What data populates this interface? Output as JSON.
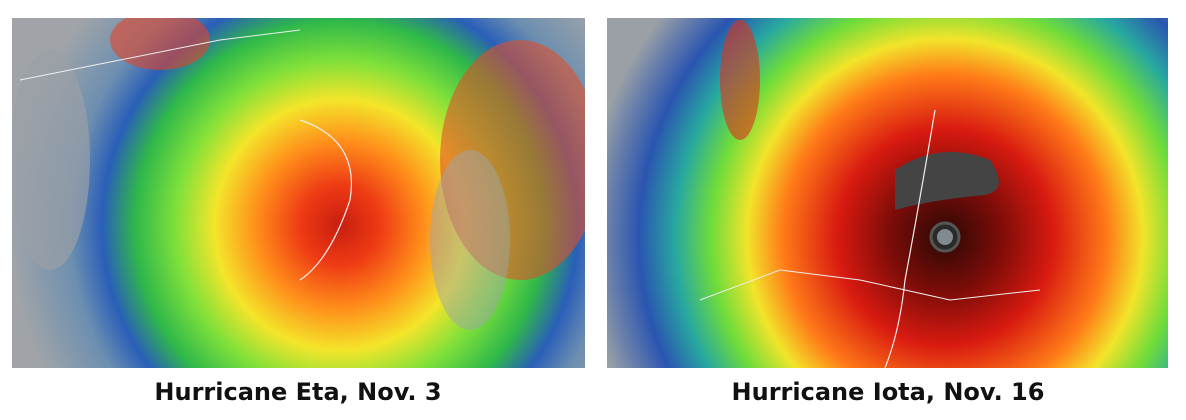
{
  "images": [
    {
      "caption": "Hurricane Eta, Nov. 3"
    },
    {
      "caption": "Hurricane Iota, Nov. 16"
    }
  ]
}
